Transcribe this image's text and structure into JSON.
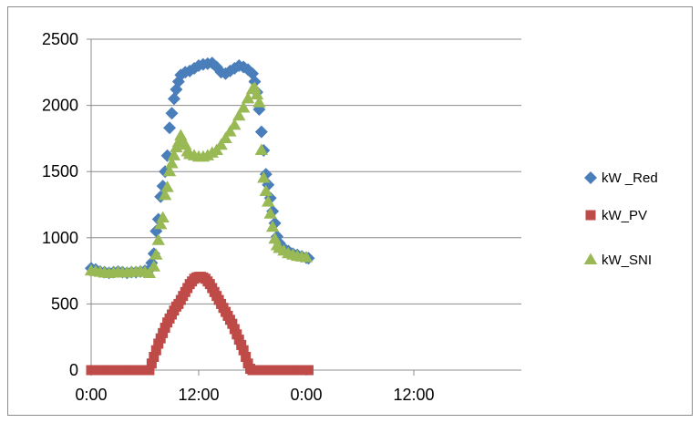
{
  "chart_data": {
    "type": "scatter",
    "title": "",
    "xlabel": "",
    "ylabel": "",
    "x_unit": "hours",
    "xlim": [
      0,
      48
    ],
    "ylim": [
      0,
      2500
    ],
    "grid": "horizontal",
    "legend_position": "right",
    "x_ticks": [
      {
        "value": 0,
        "label": "0:00"
      },
      {
        "value": 12,
        "label": "12:00"
      },
      {
        "value": 24,
        "label": "0:00"
      },
      {
        "value": 36,
        "label": "12:00"
      }
    ],
    "y_ticks": [
      {
        "value": 0,
        "label": "0"
      },
      {
        "value": 500,
        "label": "500"
      },
      {
        "value": 1000,
        "label": "1000"
      },
      {
        "value": 1500,
        "label": "1500"
      },
      {
        "value": 2000,
        "label": "2000"
      },
      {
        "value": 2500,
        "label": "2500"
      }
    ],
    "series": [
      {
        "name": "kW _Red",
        "marker": "diamond",
        "color": "#4A7EBB",
        "points": [
          [
            0.0,
            770
          ],
          [
            0.5,
            760
          ],
          [
            1.0,
            745
          ],
          [
            1.5,
            740
          ],
          [
            2.0,
            735
          ],
          [
            2.5,
            740
          ],
          [
            3.0,
            745
          ],
          [
            3.5,
            740
          ],
          [
            4.0,
            735
          ],
          [
            4.5,
            740
          ],
          [
            5.0,
            740
          ],
          [
            5.5,
            745
          ],
          [
            6.0,
            750
          ],
          [
            6.5,
            760
          ],
          [
            6.75,
            810
          ],
          [
            7.0,
            880
          ],
          [
            7.25,
            1050
          ],
          [
            7.5,
            1140
          ],
          [
            7.75,
            1310
          ],
          [
            8.0,
            1390
          ],
          [
            8.25,
            1500
          ],
          [
            8.5,
            1620
          ],
          [
            8.75,
            1830
          ],
          [
            9.0,
            1940
          ],
          [
            9.25,
            2050
          ],
          [
            9.5,
            2120
          ],
          [
            9.75,
            2180
          ],
          [
            10.0,
            2230
          ],
          [
            10.5,
            2250
          ],
          [
            11.0,
            2260
          ],
          [
            11.5,
            2280
          ],
          [
            12.0,
            2300
          ],
          [
            12.5,
            2310
          ],
          [
            13.0,
            2315
          ],
          [
            13.5,
            2320
          ],
          [
            14.0,
            2290
          ],
          [
            14.5,
            2250
          ],
          [
            15.0,
            2240
          ],
          [
            15.5,
            2260
          ],
          [
            16.0,
            2280
          ],
          [
            16.5,
            2300
          ],
          [
            17.0,
            2290
          ],
          [
            17.5,
            2270
          ],
          [
            18.0,
            2240
          ],
          [
            18.25,
            2180
          ],
          [
            18.5,
            2100
          ],
          [
            18.75,
            1970
          ],
          [
            19.0,
            1800
          ],
          [
            19.25,
            1660
          ],
          [
            19.5,
            1480
          ],
          [
            19.75,
            1400
          ],
          [
            20.0,
            1300
          ],
          [
            20.25,
            1200
          ],
          [
            20.5,
            1110
          ],
          [
            20.75,
            1010
          ],
          [
            21.0,
            960
          ],
          [
            21.5,
            920
          ],
          [
            22.0,
            900
          ],
          [
            22.5,
            880
          ],
          [
            23.0,
            870
          ],
          [
            23.5,
            860
          ],
          [
            24.0,
            850
          ],
          [
            24.25,
            845
          ]
        ]
      },
      {
        "name": "kW_PV",
        "marker": "square",
        "color": "#BE4B48",
        "points": [
          [
            0.0,
            0
          ],
          [
            0.5,
            0
          ],
          [
            1.0,
            0
          ],
          [
            1.5,
            0
          ],
          [
            2.0,
            0
          ],
          [
            2.5,
            0
          ],
          [
            3.0,
            0
          ],
          [
            3.5,
            0
          ],
          [
            4.0,
            0
          ],
          [
            4.5,
            0
          ],
          [
            5.0,
            0
          ],
          [
            5.5,
            0
          ],
          [
            6.0,
            0
          ],
          [
            6.5,
            0
          ],
          [
            6.75,
            50
          ],
          [
            7.0,
            100
          ],
          [
            7.25,
            150
          ],
          [
            7.5,
            200
          ],
          [
            7.75,
            240
          ],
          [
            8.0,
            280
          ],
          [
            8.25,
            320
          ],
          [
            8.5,
            360
          ],
          [
            8.75,
            390
          ],
          [
            9.0,
            420
          ],
          [
            9.25,
            450
          ],
          [
            9.5,
            480
          ],
          [
            9.75,
            500
          ],
          [
            10.0,
            530
          ],
          [
            10.25,
            560
          ],
          [
            10.5,
            590
          ],
          [
            10.75,
            620
          ],
          [
            11.0,
            650
          ],
          [
            11.25,
            670
          ],
          [
            11.5,
            690
          ],
          [
            11.75,
            700
          ],
          [
            12.0,
            705
          ],
          [
            12.25,
            705
          ],
          [
            12.5,
            700
          ],
          [
            12.75,
            690
          ],
          [
            13.0,
            670
          ],
          [
            13.25,
            650
          ],
          [
            13.5,
            620
          ],
          [
            13.75,
            590
          ],
          [
            14.0,
            560
          ],
          [
            14.25,
            530
          ],
          [
            14.5,
            500
          ],
          [
            14.75,
            470
          ],
          [
            15.0,
            440
          ],
          [
            15.25,
            410
          ],
          [
            15.5,
            380
          ],
          [
            15.75,
            350
          ],
          [
            16.0,
            310
          ],
          [
            16.25,
            270
          ],
          [
            16.5,
            230
          ],
          [
            16.75,
            190
          ],
          [
            17.0,
            150
          ],
          [
            17.25,
            100
          ],
          [
            17.5,
            50
          ],
          [
            17.75,
            10
          ],
          [
            18.0,
            0
          ],
          [
            18.5,
            0
          ],
          [
            19.0,
            0
          ],
          [
            19.5,
            0
          ],
          [
            20.0,
            0
          ],
          [
            20.5,
            0
          ],
          [
            21.0,
            0
          ],
          [
            21.5,
            0
          ],
          [
            22.0,
            0
          ],
          [
            22.5,
            0
          ],
          [
            23.0,
            0
          ],
          [
            23.5,
            0
          ],
          [
            24.0,
            0
          ],
          [
            24.25,
            0
          ]
        ]
      },
      {
        "name": "kW_SNI",
        "marker": "triangle",
        "color": "#98B954",
        "points": [
          [
            0.0,
            750
          ],
          [
            0.5,
            745
          ],
          [
            1.0,
            740
          ],
          [
            1.5,
            735
          ],
          [
            2.0,
            730
          ],
          [
            2.5,
            735
          ],
          [
            3.0,
            740
          ],
          [
            3.5,
            735
          ],
          [
            4.0,
            735
          ],
          [
            4.5,
            740
          ],
          [
            5.0,
            740
          ],
          [
            5.5,
            745
          ],
          [
            6.0,
            740
          ],
          [
            6.5,
            730
          ],
          [
            7.0,
            780
          ],
          [
            7.25,
            870
          ],
          [
            7.5,
            980
          ],
          [
            7.75,
            1100
          ],
          [
            8.0,
            1150
          ],
          [
            8.25,
            1320
          ],
          [
            8.5,
            1380
          ],
          [
            8.75,
            1500
          ],
          [
            9.0,
            1560
          ],
          [
            9.25,
            1620
          ],
          [
            9.5,
            1680
          ],
          [
            9.75,
            1720
          ],
          [
            10.0,
            1770
          ],
          [
            10.25,
            1730
          ],
          [
            10.5,
            1700
          ],
          [
            10.75,
            1650
          ],
          [
            11.0,
            1630
          ],
          [
            11.5,
            1620
          ],
          [
            12.0,
            1610
          ],
          [
            12.5,
            1610
          ],
          [
            13.0,
            1620
          ],
          [
            13.5,
            1640
          ],
          [
            14.0,
            1660
          ],
          [
            14.5,
            1700
          ],
          [
            15.0,
            1750
          ],
          [
            15.5,
            1800
          ],
          [
            16.0,
            1850
          ],
          [
            16.5,
            1920
          ],
          [
            17.0,
            1980
          ],
          [
            17.5,
            2050
          ],
          [
            18.0,
            2120
          ],
          [
            18.25,
            2130
          ],
          [
            18.5,
            2080
          ],
          [
            18.75,
            2020
          ],
          [
            19.0,
            1660
          ],
          [
            19.25,
            1450
          ],
          [
            19.5,
            1350
          ],
          [
            19.75,
            1270
          ],
          [
            20.0,
            1180
          ],
          [
            20.25,
            1080
          ],
          [
            20.5,
            990
          ],
          [
            20.75,
            940
          ],
          [
            21.0,
            920
          ],
          [
            21.5,
            900
          ],
          [
            22.0,
            880
          ],
          [
            22.5,
            870
          ],
          [
            23.0,
            860
          ],
          [
            23.5,
            855
          ],
          [
            24.0,
            850
          ]
        ]
      }
    ]
  }
}
